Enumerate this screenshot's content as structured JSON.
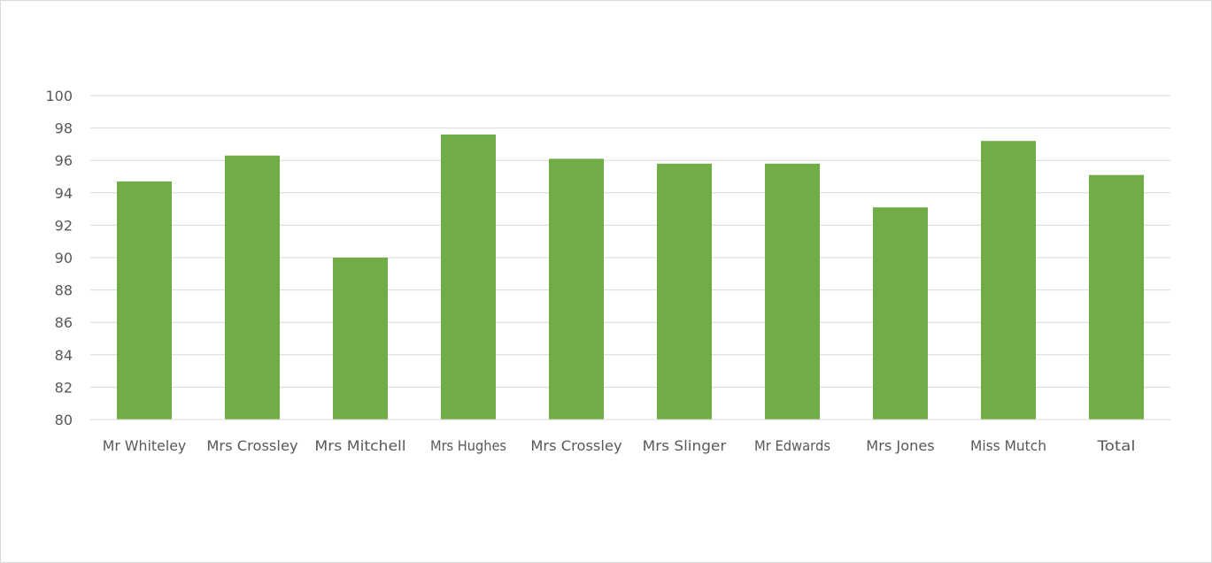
{
  "chart_data": {
    "type": "bar",
    "categories": [
      "Mr Whiteley",
      "Mrs Crossley",
      "Mrs Mitchell",
      "Mrs Hughes",
      "Mrs Crossley",
      "Mrs Slinger",
      "Mr Edwards",
      "Mrs Jones",
      "Miss Mutch",
      "Total"
    ],
    "values": [
      94.7,
      96.3,
      90.0,
      97.6,
      96.1,
      95.8,
      95.8,
      93.1,
      97.2,
      95.1
    ],
    "title": "",
    "xlabel": "",
    "ylabel": "",
    "ylim": [
      80,
      100
    ],
    "yticks": [
      80,
      82,
      84,
      86,
      88,
      90,
      92,
      94,
      96,
      98,
      100
    ],
    "grid": true,
    "legend": "none",
    "colors": {
      "bar": "#70ad47",
      "grid": "#d9d9d9",
      "axis": "#d9d9d9",
      "text": "#595959"
    }
  }
}
